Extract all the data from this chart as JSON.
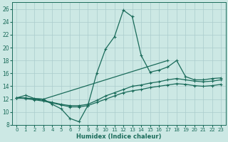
{
  "xlabel": "Humidex (Indice chaleur)",
  "bg_color": "#cce8e4",
  "grid_color": "#aacccc",
  "line_color": "#1a6b5a",
  "xlim": [
    -0.5,
    23.5
  ],
  "ylim": [
    8,
    27
  ],
  "xticks": [
    0,
    1,
    2,
    3,
    4,
    5,
    6,
    7,
    8,
    9,
    10,
    11,
    12,
    13,
    14,
    15,
    16,
    17,
    18,
    19,
    20,
    21,
    22,
    23
  ],
  "yticks": [
    8,
    10,
    12,
    14,
    16,
    18,
    20,
    22,
    24,
    26
  ],
  "lines": [
    {
      "x": [
        0,
        1,
        2,
        3,
        4,
        5,
        6,
        7,
        8,
        9,
        10,
        11,
        12,
        13,
        14,
        15,
        16,
        17,
        18,
        19,
        20,
        21,
        22,
        23
      ],
      "y": [
        12.2,
        12.6,
        12.1,
        12.0,
        11.2,
        10.5,
        9.0,
        8.5,
        11.0,
        16.0,
        19.8,
        21.7,
        25.8,
        24.8,
        18.8,
        16.2,
        16.5,
        17.0,
        18.0,
        15.5,
        15.0,
        15.0,
        15.2,
        15.3
      ]
    },
    {
      "x": [
        0,
        3,
        17
      ],
      "y": [
        12.2,
        12.0,
        18.0
      ]
    },
    {
      "x": [
        0,
        1,
        2,
        3,
        4,
        5,
        6,
        7,
        8,
        9,
        10,
        11,
        12,
        13,
        14,
        15,
        16,
        17,
        18,
        19,
        20,
        21,
        22,
        23
      ],
      "y": [
        12.2,
        12.2,
        12.0,
        11.8,
        11.5,
        11.2,
        11.0,
        11.0,
        11.2,
        11.8,
        12.5,
        13.0,
        13.5,
        14.0,
        14.2,
        14.5,
        14.7,
        15.0,
        15.2,
        15.0,
        14.8,
        14.7,
        14.8,
        15.0
      ]
    },
    {
      "x": [
        0,
        1,
        2,
        3,
        4,
        5,
        6,
        7,
        8,
        9,
        10,
        11,
        12,
        13,
        14,
        15,
        16,
        17,
        18,
        19,
        20,
        21,
        22,
        23
      ],
      "y": [
        12.2,
        12.1,
        11.9,
        11.7,
        11.4,
        11.1,
        10.8,
        10.8,
        11.0,
        11.5,
        12.0,
        12.5,
        13.0,
        13.3,
        13.5,
        13.8,
        14.0,
        14.2,
        14.4,
        14.3,
        14.1,
        14.0,
        14.1,
        14.3
      ]
    }
  ]
}
